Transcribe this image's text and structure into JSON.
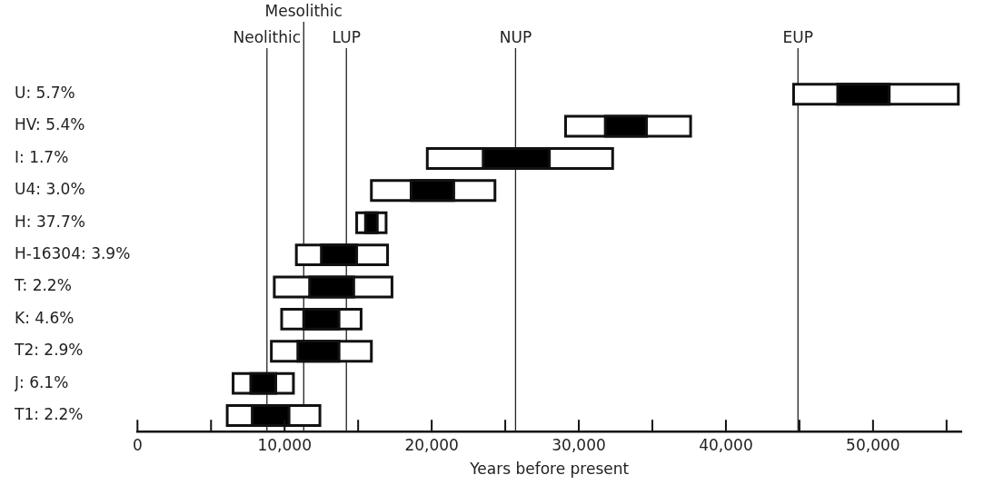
{
  "chart_data": {
    "type": "bar",
    "orientation": "horizontal",
    "xlabel": "Years before present",
    "categories": [
      "U: 5.7%",
      "HV: 5.4%",
      "I: 1.7%",
      "U4: 3.0%",
      "H: 37.7%",
      "H-16304: 3.9%",
      "T: 2.2%",
      "K: 4.6%",
      "T2: 2.9%",
      "J: 6.1%",
      "T1: 2.2%"
    ],
    "series": [
      {
        "color": "#ffffff",
        "base": [
          44600,
          29100,
          19700,
          15900,
          14900,
          10800,
          9300,
          9800,
          9100,
          6500,
          6100
        ],
        "values": [
          11200,
          8500,
          12600,
          8400,
          2000,
          6200,
          8000,
          5400,
          6800,
          4100,
          6300
        ]
      },
      {
        "color": "#000000",
        "base": [
          47600,
          31800,
          23500,
          18600,
          15500,
          12500,
          11700,
          11300,
          10900,
          7700,
          7800
        ],
        "values": [
          3500,
          2800,
          4500,
          2900,
          800,
          2400,
          3000,
          2400,
          2800,
          1700,
          2500
        ]
      }
    ],
    "xlim": [
      0,
      56000
    ],
    "xticks": [
      0,
      {
        "value": 5000,
        "label": null
      },
      {
        "value": 10000,
        "label": "10,000"
      },
      {
        "value": 15000,
        "label": null
      },
      {
        "value": 20000,
        "label": "20,000"
      },
      {
        "value": 25000,
        "label": null
      },
      {
        "value": 30000,
        "label": "30,000"
      },
      {
        "value": 35000,
        "label": null
      },
      {
        "value": 40000,
        "label": "40,000"
      },
      {
        "value": 45000,
        "label": null
      },
      {
        "value": 50000,
        "label": "50,000"
      },
      {
        "value": 55000,
        "label": null
      }
    ],
    "ref_lines": [
      {
        "axis": "x",
        "value": 8800,
        "label": "Neolithic"
      },
      {
        "axis": "x",
        "value": 11300,
        "label": "Mesolithic"
      },
      {
        "axis": "x",
        "value": 14200,
        "label": "LUP"
      },
      {
        "axis": "x",
        "value": 25700,
        "label": "NUP"
      },
      {
        "axis": "x",
        "value": 44900,
        "label": "EUP"
      }
    ],
    "grid": false,
    "legend": false
  }
}
